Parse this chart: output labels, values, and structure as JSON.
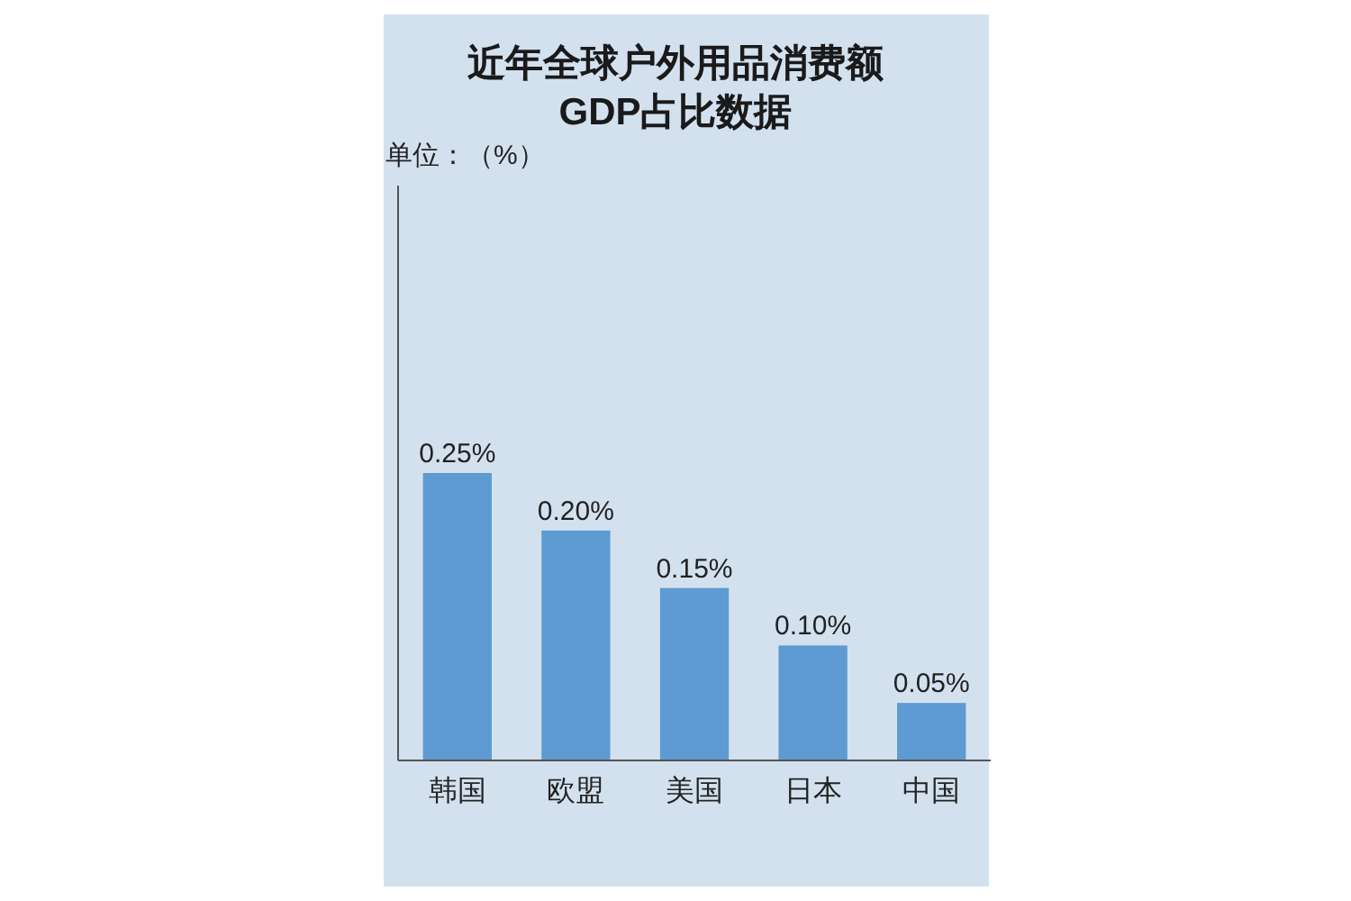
{
  "chart_data": {
    "type": "bar",
    "title": "近年全球户外用品消费额GDP占比数据",
    "annotations": [
      "单位：（%）"
    ],
    "categories": [
      "韩国",
      "欧盟",
      "美国",
      "日本",
      "中国"
    ],
    "values": [
      0.25,
      0.2,
      0.15,
      0.1,
      0.05
    ],
    "value_labels": [
      "0.25%",
      "0.20%",
      "0.15%",
      "0.10%",
      "0.05%"
    ],
    "color": "#5d9bd2"
  }
}
